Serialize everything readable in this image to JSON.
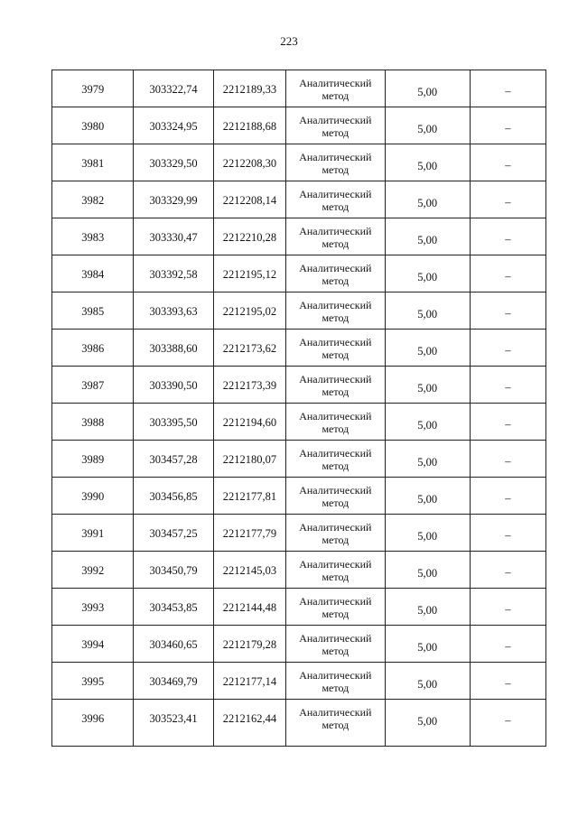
{
  "page_number": "223",
  "rows": [
    {
      "n": "3979",
      "x": "303322,74",
      "y": "2212189,33",
      "method": "Аналитический метод",
      "accuracy": "5,00",
      "note": "–"
    },
    {
      "n": "3980",
      "x": "303324,95",
      "y": "2212188,68",
      "method": "Аналитический метод",
      "accuracy": "5,00",
      "note": "–"
    },
    {
      "n": "3981",
      "x": "303329,50",
      "y": "2212208,30",
      "method": "Аналитический метод",
      "accuracy": "5,00",
      "note": "–"
    },
    {
      "n": "3982",
      "x": "303329,99",
      "y": "2212208,14",
      "method": "Аналитический метод",
      "accuracy": "5,00",
      "note": "–"
    },
    {
      "n": "3983",
      "x": "303330,47",
      "y": "2212210,28",
      "method": "Аналитический метод",
      "accuracy": "5,00",
      "note": "–"
    },
    {
      "n": "3984",
      "x": "303392,58",
      "y": "2212195,12",
      "method": "Аналитический метод",
      "accuracy": "5,00",
      "note": "–"
    },
    {
      "n": "3985",
      "x": "303393,63",
      "y": "2212195,02",
      "method": "Аналитический метод",
      "accuracy": "5,00",
      "note": "–"
    },
    {
      "n": "3986",
      "x": "303388,60",
      "y": "2212173,62",
      "method": "Аналитический метод",
      "accuracy": "5,00",
      "note": "–"
    },
    {
      "n": "3987",
      "x": "303390,50",
      "y": "2212173,39",
      "method": "Аналитический метод",
      "accuracy": "5,00",
      "note": "–"
    },
    {
      "n": "3988",
      "x": "303395,50",
      "y": "2212194,60",
      "method": "Аналитический метод",
      "accuracy": "5,00",
      "note": "–"
    },
    {
      "n": "3989",
      "x": "303457,28",
      "y": "2212180,07",
      "method": "Аналитический метод",
      "accuracy": "5,00",
      "note": "–"
    },
    {
      "n": "3990",
      "x": "303456,85",
      "y": "2212177,81",
      "method": "Аналитический метод",
      "accuracy": "5,00",
      "note": "–"
    },
    {
      "n": "3991",
      "x": "303457,25",
      "y": "2212177,79",
      "method": "Аналитический метод",
      "accuracy": "5,00",
      "note": "–"
    },
    {
      "n": "3992",
      "x": "303450,79",
      "y": "2212145,03",
      "method": "Аналитический метод",
      "accuracy": "5,00",
      "note": "–"
    },
    {
      "n": "3993",
      "x": "303453,85",
      "y": "2212144,48",
      "method": "Аналитический метод",
      "accuracy": "5,00",
      "note": "–"
    },
    {
      "n": "3994",
      "x": "303460,65",
      "y": "2212179,28",
      "method": "Аналитический метод",
      "accuracy": "5,00",
      "note": "–"
    },
    {
      "n": "3995",
      "x": "303469,79",
      "y": "2212177,14",
      "method": "Аналитический метод",
      "accuracy": "5,00",
      "note": "–"
    },
    {
      "n": "3996",
      "x": "303523,41",
      "y": "2212162,44",
      "method": "Аналитический метод",
      "accuracy": "5,00",
      "note": "–"
    }
  ]
}
